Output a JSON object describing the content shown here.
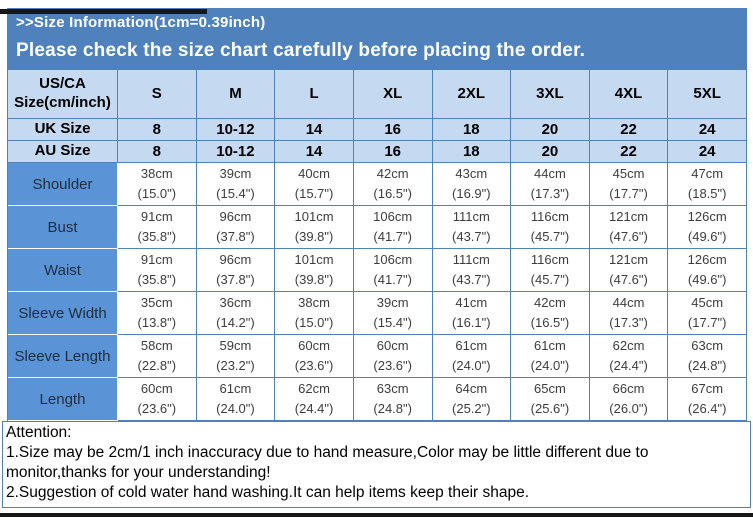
{
  "banner": {
    "line1": ">>Size Information(1cm=0.39inch)",
    "line2": "Please check the size chart carefully before placing the order."
  },
  "table": {
    "corner_label": "US/CA Size(cm/inch)",
    "size_labels": [
      "S",
      "M",
      "L",
      "XL",
      "2XL",
      "3XL",
      "4XL",
      "5XL"
    ],
    "uk_row": {
      "label": "UK Size",
      "values": [
        "8",
        "10-12",
        "14",
        "16",
        "18",
        "20",
        "22",
        "24"
      ]
    },
    "au_row": {
      "label": "AU Size",
      "values": [
        "8",
        "10-12",
        "14",
        "16",
        "18",
        "20",
        "22",
        "24"
      ]
    },
    "measurement_rows": [
      {
        "label": "Shoulder",
        "cm": [
          "38cm",
          "39cm",
          "40cm",
          "42cm",
          "43cm",
          "44cm",
          "45cm",
          "47cm"
        ],
        "inch": [
          "(15.0\")",
          "(15.4\")",
          "(15.7\")",
          "(16.5\")",
          "(16.9\")",
          "(17.3\")",
          "(17.7\")",
          "(18.5\")"
        ]
      },
      {
        "label": "Bust",
        "cm": [
          "91cm",
          "96cm",
          "101cm",
          "106cm",
          "111cm",
          "116cm",
          "121cm",
          "126cm"
        ],
        "inch": [
          "(35.8\")",
          "(37.8\")",
          "(39.8\")",
          "(41.7\")",
          "(43.7\")",
          "(45.7\")",
          "(47.6\")",
          "(49.6\")"
        ]
      },
      {
        "label": "Waist",
        "cm": [
          "91cm",
          "96cm",
          "101cm",
          "106cm",
          "111cm",
          "116cm",
          "121cm",
          "126cm"
        ],
        "inch": [
          "(35.8\")",
          "(37.8\")",
          "(39.8\")",
          "(41.7\")",
          "(43.7\")",
          "(45.7\")",
          "(47.6\")",
          "(49.6\")"
        ]
      },
      {
        "label": "Sleeve Width",
        "cm": [
          "35cm",
          "36cm",
          "38cm",
          "39cm",
          "41cm",
          "42cm",
          "44cm",
          "45cm"
        ],
        "inch": [
          "(13.8\")",
          "(14.2\")",
          "(15.0\")",
          "(15.4\")",
          "(16.1\")",
          "(16.5\")",
          "(17.3\")",
          "(17.7\")"
        ]
      },
      {
        "label": "Sleeve Length",
        "cm": [
          "58cm",
          "59cm",
          "60cm",
          "60cm",
          "61cm",
          "61cm",
          "62cm",
          "63cm"
        ],
        "inch": [
          "(22.8\")",
          "(23.2\")",
          "(23.6\")",
          "(23.6\")",
          "(24.0\")",
          "(24.0\")",
          "(24.4\")",
          "(24.8\")"
        ]
      },
      {
        "label": "Length",
        "cm": [
          "60cm",
          "61cm",
          "62cm",
          "63cm",
          "64cm",
          "65cm",
          "66cm",
          "67cm"
        ],
        "inch": [
          "(23.6\")",
          "(24.0\")",
          "(24.4\")",
          "(24.8\")",
          "(25.2\")",
          "(25.6\")",
          "(26.0\")",
          "(26.4\")"
        ]
      }
    ]
  },
  "attention": {
    "title": "Attention:",
    "note1": "1.Size may be 2cm/1 inch inaccuracy due to hand measure,Color may be little different due to monitor,thanks for your understanding!",
    "note2": "2.Suggestion of cold water hand washing.It can help items keep their shape."
  },
  "colors": {
    "accent_blue": "#4f81bd",
    "header_cell_blue": "#c5d9f1",
    "label_cell_blue": "#5b94d6",
    "bar_dark": "#161616"
  }
}
